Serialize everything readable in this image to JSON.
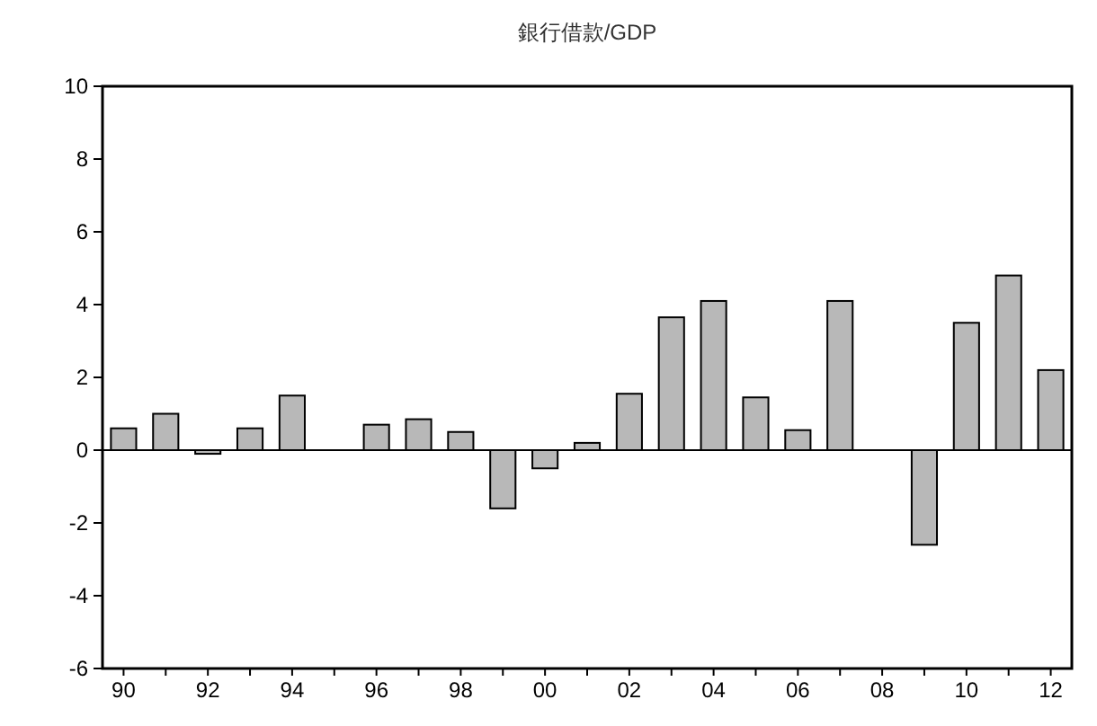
{
  "chart_data": {
    "type": "bar",
    "title": "銀行借款/GDP",
    "categories": [
      "90",
      null,
      "92",
      null,
      "94",
      null,
      "96",
      null,
      "98",
      null,
      "00",
      null,
      "02",
      null,
      "04",
      null,
      "06",
      null,
      "08",
      null,
      "10",
      null,
      "12"
    ],
    "values": [
      0.6,
      1.0,
      -0.1,
      0.6,
      1.5,
      0.0,
      0.7,
      0.85,
      0.5,
      -1.6,
      -0.5,
      0.2,
      1.55,
      3.65,
      4.1,
      1.45,
      0.55,
      4.1,
      0.0,
      -2.6,
      3.5,
      4.8,
      2.2
    ],
    "color": "#b8b8b8",
    "ylim": [
      -6,
      10
    ],
    "yticks": [
      -6,
      -4,
      -2,
      0,
      2,
      4,
      6,
      8,
      10
    ],
    "grid": false,
    "ref_lines": [
      {
        "axis": "y",
        "value": 0,
        "color": "#000000"
      }
    ]
  }
}
